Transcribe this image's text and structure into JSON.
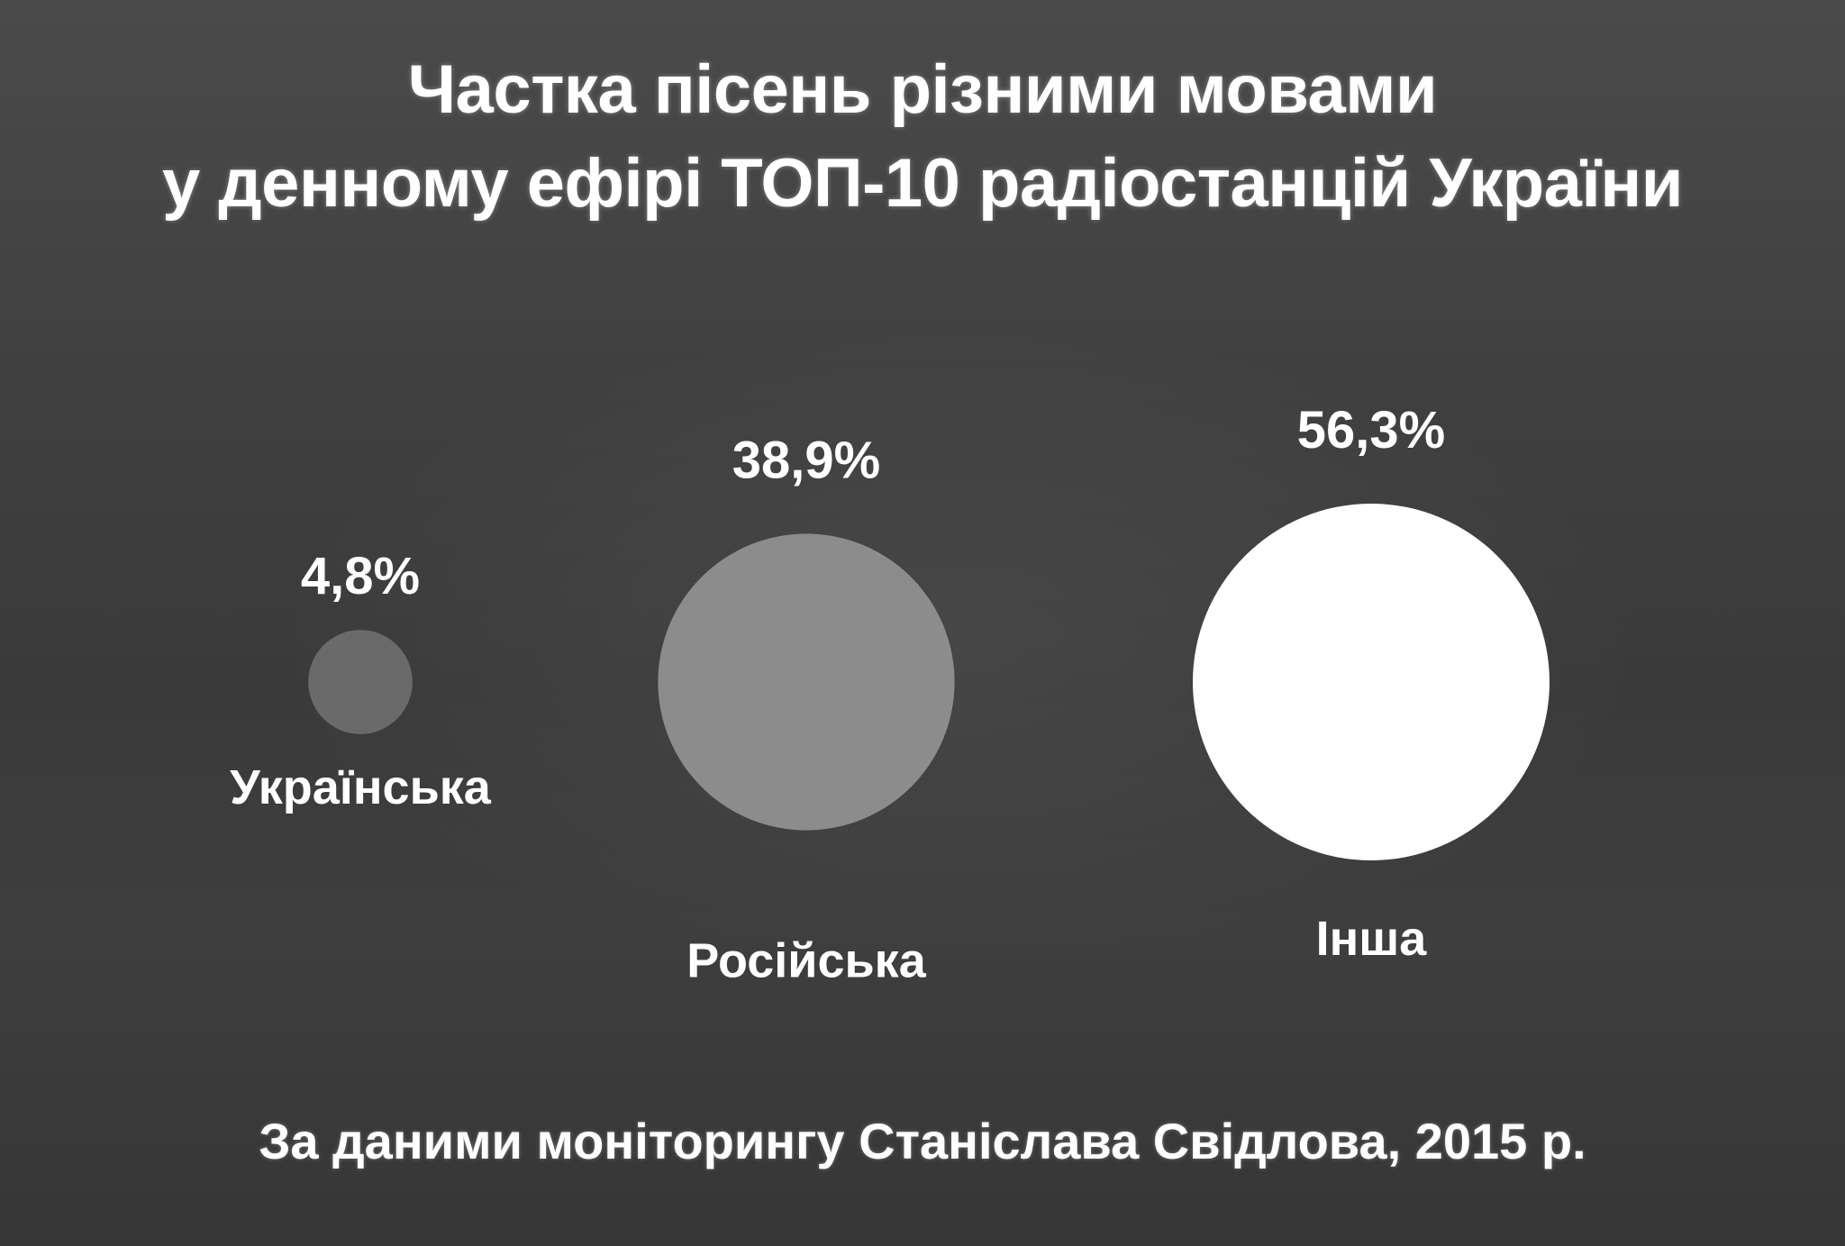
{
  "chart_data": {
    "type": "bubble",
    "title": "Частка пісень різними мовами у денному ефірі ТОП-10 радіостанцій України",
    "title_lines": [
      "Частка пісень різними мовами",
      "у денному ефірі ТОП-10 радіостанцій України"
    ],
    "categories": [
      "Українська",
      "Російська",
      "Інша"
    ],
    "values": [
      4.8,
      38.9,
      56.3
    ],
    "value_labels": [
      "4,8%",
      "38,9%",
      "56,3%"
    ],
    "unit": "%",
    "colors": [
      "#6a6a6a",
      "#8c8c8c",
      "#ffffff"
    ],
    "source": "За даними моніторингу Станіслава Свідлова, 2015 р."
  }
}
